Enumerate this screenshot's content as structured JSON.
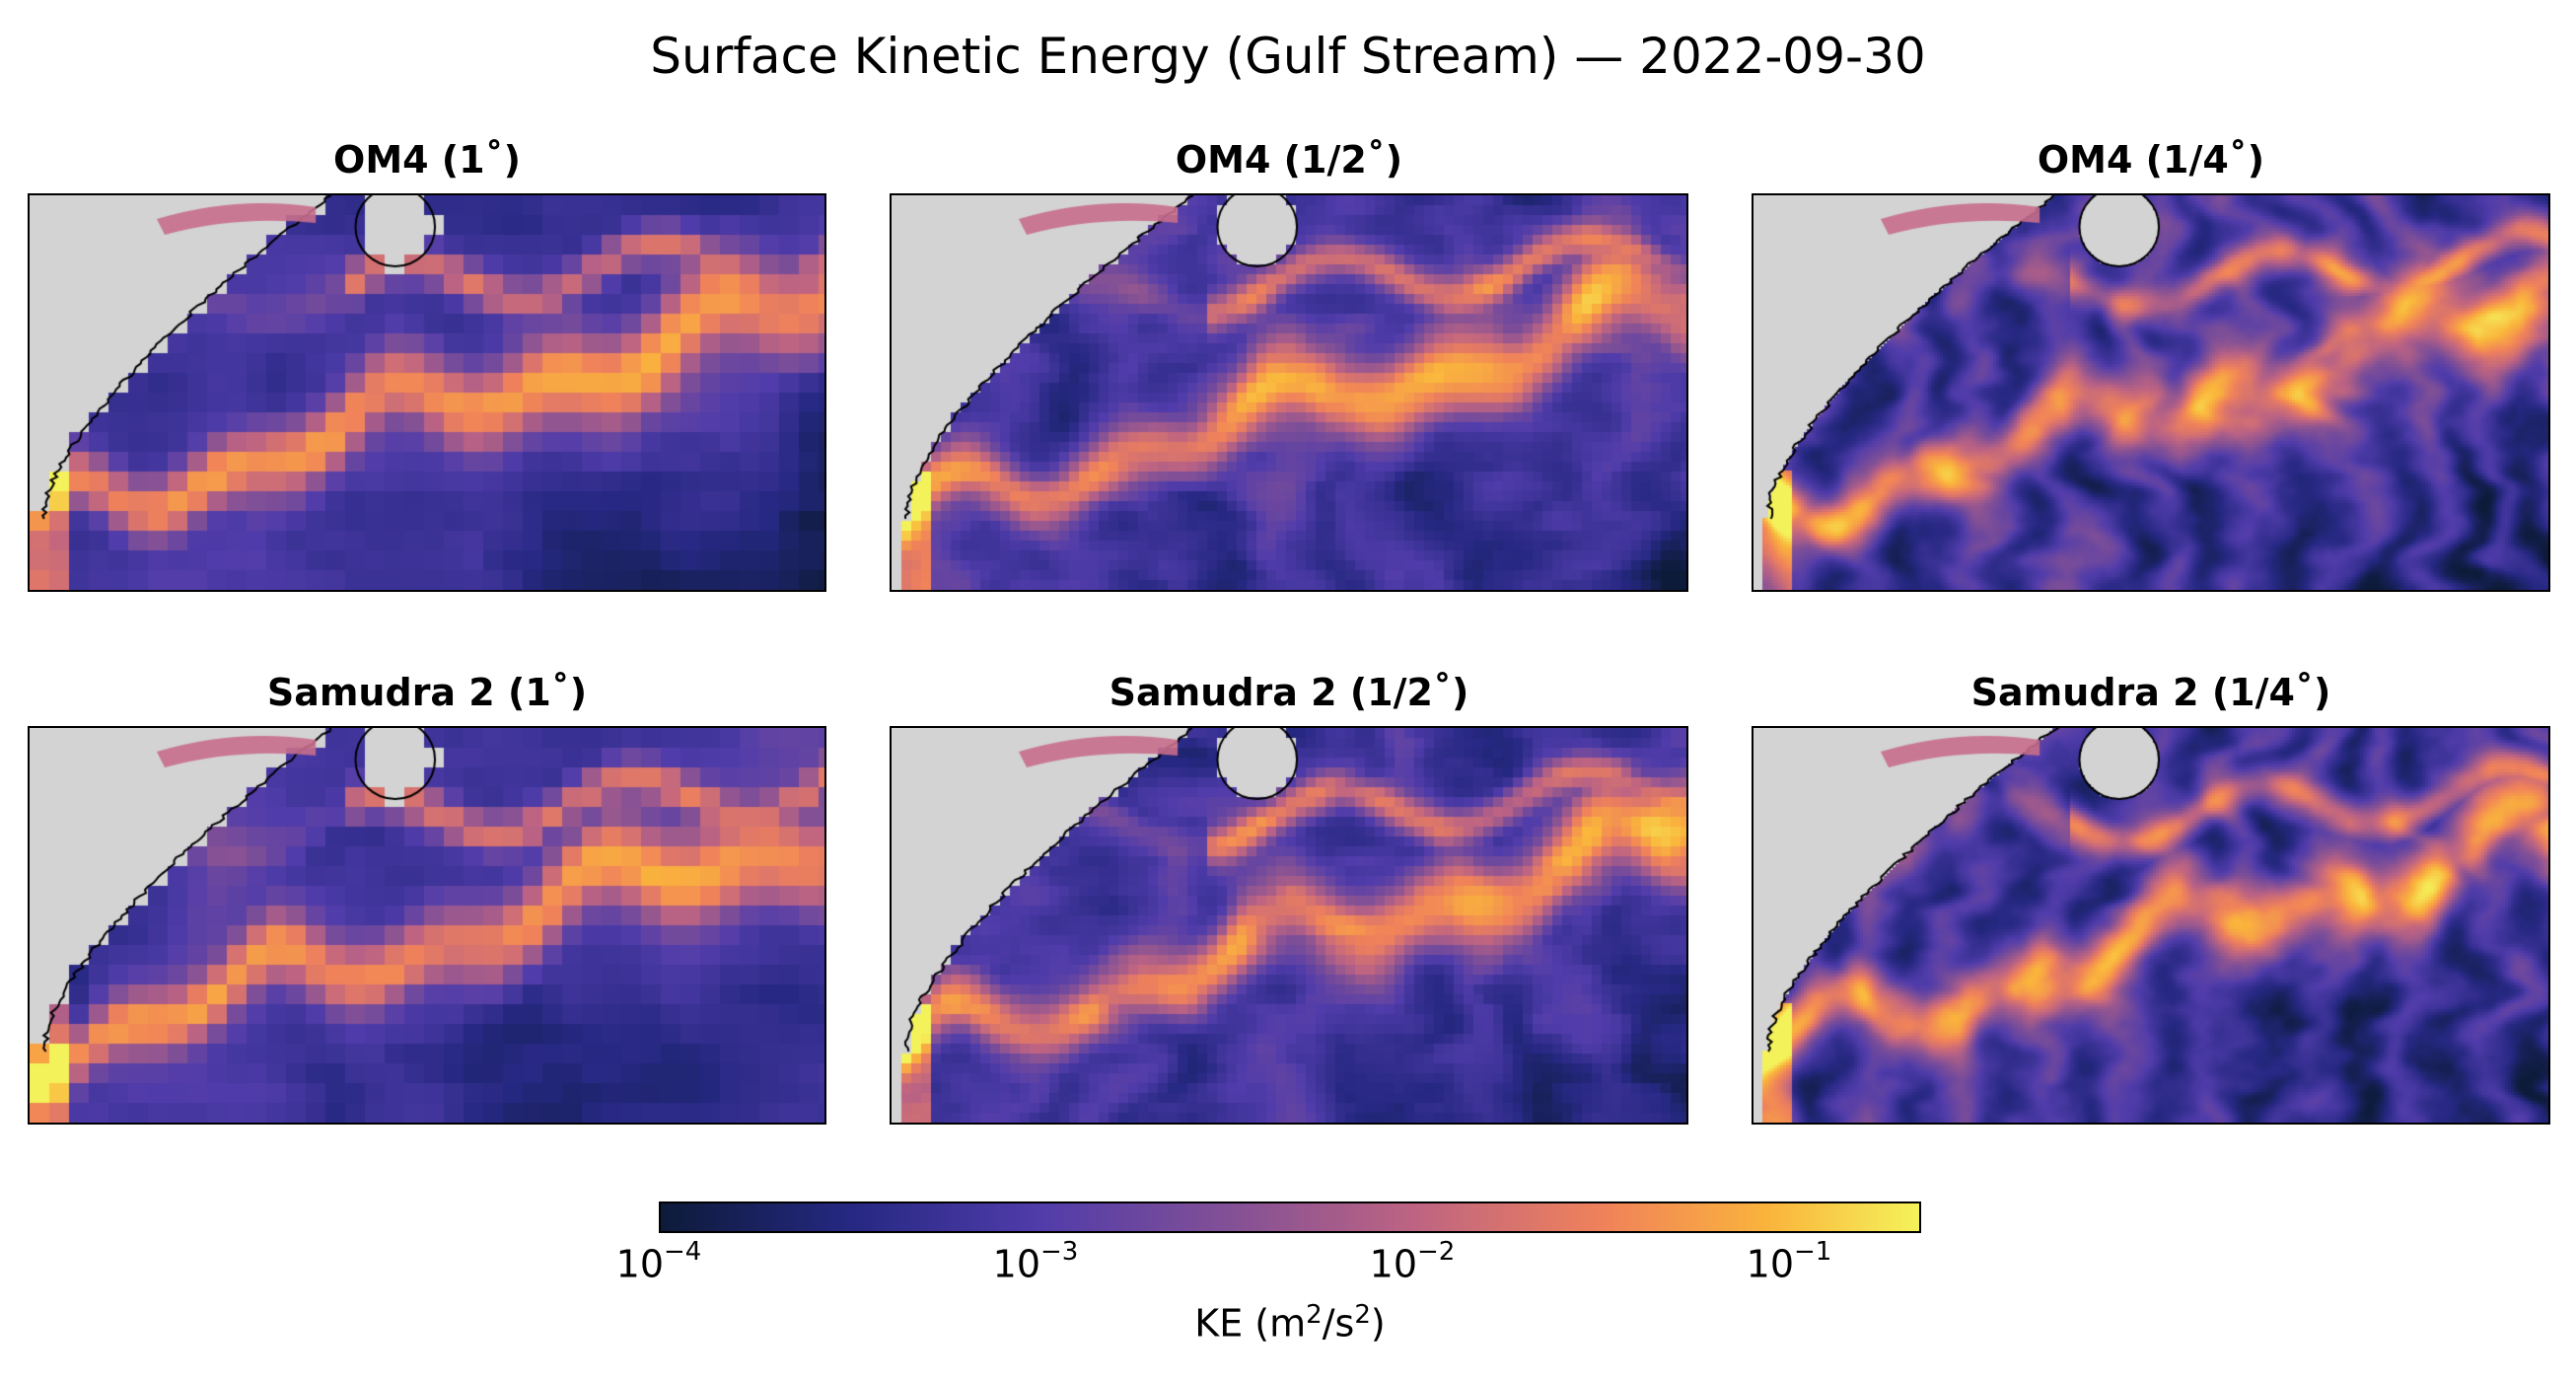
{
  "chart_data": {
    "type": "heatmap",
    "title": "Surface Kinetic Energy (Gulf Stream) — 2022-09-30",
    "colormap": "plasma-like (dark navy → purple → pink → orange → yellow)",
    "scale": "log",
    "panels": [
      {
        "title": "OM4 (1$^\\circ$)",
        "display_title": "OM4 (1˚)",
        "model": "OM4",
        "resolution_label": "1˚"
      },
      {
        "title": "OM4 (1/2˚)",
        "display_title": "OM4 (1/2˚)",
        "model": "OM4",
        "resolution_label": "1/2˚"
      },
      {
        "title": "OM4 (1/4˚)",
        "display_title": "OM4 (1/4˚)",
        "model": "OM4",
        "resolution_label": "1/4˚"
      },
      {
        "title": "Samudra 2 (1˚)",
        "display_title": "Samudra 2 (1˚)",
        "model": "Samudra 2",
        "resolution_label": "1˚"
      },
      {
        "title": "Samudra 2 (1/2˚)",
        "display_title": "Samudra 2 (1/2˚)",
        "model": "Samudra 2",
        "resolution_label": "1/2˚"
      },
      {
        "title": "Samudra 2 (1/4˚)",
        "display_title": "Samudra 2 (1/4˚)",
        "model": "Samudra 2",
        "resolution_label": "1/4˚"
      }
    ],
    "colorbar": {
      "label": "KE (m²/s²)",
      "label_base": "KE (m",
      "label_mid": "/s",
      "label_end": ")",
      "range": [
        0.0001,
        0.2
      ],
      "ticks": [
        {
          "base": "10",
          "exp": "−4",
          "value": 0.0001
        },
        {
          "base": "10",
          "exp": "−3",
          "value": 0.001
        },
        {
          "base": "10",
          "exp": "−2",
          "value": 0.01
        },
        {
          "base": "10",
          "exp": "−1",
          "value": 0.1
        }
      ]
    },
    "colors": {
      "land": "#d3d3d3",
      "low": "#0d1b3a",
      "mid": "#8a4e8e",
      "high": "#f4f25a"
    }
  }
}
